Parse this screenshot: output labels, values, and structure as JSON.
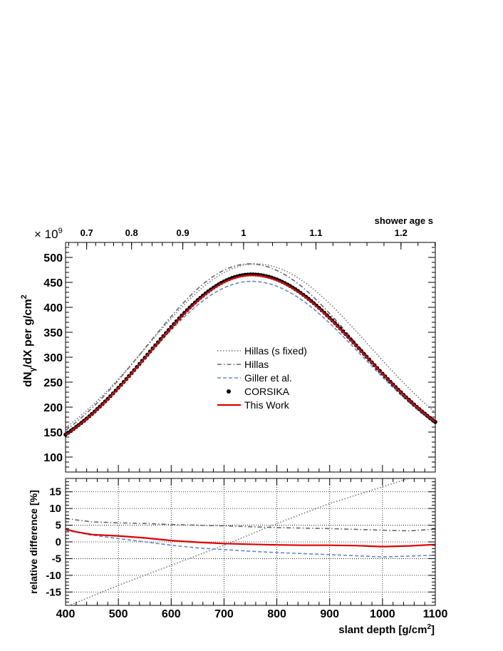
{
  "chart_data": [
    {
      "type": "line",
      "ylabel": "dN",
      "ylabel_sub": "γ",
      "ylabel_rest": "/dX per g/cm",
      "ylabel_sup": "2",
      "multiplier": "× 10",
      "multiplier_sup": "9",
      "xlim": [
        400,
        1100
      ],
      "ylim": [
        70,
        530
      ],
      "yticks": [
        "100",
        "150",
        "200",
        "250",
        "300",
        "350",
        "400",
        "450",
        "500"
      ],
      "top_axis": {
        "label": "shower age s",
        "ticks": [
          {
            "label": "0.7",
            "depth": 440
          },
          {
            "label": "0.8",
            "depth": 525
          },
          {
            "label": "0.9",
            "depth": 622
          },
          {
            "label": "1",
            "depth": 737
          },
          {
            "label": "1.1",
            "depth": 874
          },
          {
            "label": "1.2",
            "depth": 1035
          }
        ]
      },
      "legend": {
        "position": "center",
        "entries": [
          {
            "key": "hillas_s_fixed",
            "label": "Hillas (s fixed)"
          },
          {
            "key": "hillas",
            "label": "Hillas"
          },
          {
            "key": "giller",
            "label": "Giller et al."
          },
          {
            "key": "corsika",
            "label": "CORSIKA"
          },
          {
            "key": "this_work",
            "label": "This Work"
          }
        ]
      },
      "series": [
        {
          "key": "hillas_s_fixed",
          "color": "#777777",
          "style": "dotted",
          "x_max": 760,
          "y_max": 487,
          "left_width": 205,
          "right_width": 215,
          "low_cut": 70
        },
        {
          "key": "hillas",
          "color": "#666677",
          "style": "dashdot",
          "x_max": 748,
          "y_max": 487,
          "left_width": 194,
          "right_width": 206,
          "low_cut": 70
        },
        {
          "key": "giller",
          "color": "#6688cc",
          "style": "dashed",
          "x_max": 752,
          "y_max": 452,
          "left_width": 198,
          "right_width": 210,
          "low_cut": 70
        },
        {
          "key": "corsika",
          "color": "#000000",
          "style": "markers",
          "x_max": 752,
          "y_max": 466,
          "left_width": 193,
          "right_width": 210,
          "low_cut": 70,
          "marker_step": 5
        },
        {
          "key": "this_work",
          "color": "#dd0000",
          "style": "solid",
          "x_max": 752,
          "y_max": 464,
          "left_width": 193,
          "right_width": 210,
          "low_cut": 70
        }
      ]
    },
    {
      "type": "line",
      "ylabel": "relative difference [%]",
      "xlabel": "slant depth [g/cm",
      "xlabel_sup": "2",
      "xlabel_end": "]",
      "xlim": [
        400,
        1100
      ],
      "ylim": [
        -19,
        19
      ],
      "xticks": [
        "400",
        "500",
        "600",
        "700",
        "800",
        "900",
        "1000",
        "1100"
      ],
      "yticks": [
        "-15",
        "-10",
        "-5",
        "0",
        "5",
        "10",
        "15"
      ],
      "grid": true,
      "series": [
        {
          "key": "hillas_s_fixed",
          "color": "#777777",
          "style": "dotted",
          "x": [
            400,
            500,
            600,
            700,
            800,
            900,
            1000,
            1050,
            1100
          ],
          "y": [
            -19.5,
            -13,
            -7,
            -1,
            5.5,
            11.5,
            16.5,
            19,
            21
          ]
        },
        {
          "key": "hillas",
          "color": "#666677",
          "style": "dashdot",
          "x": [
            400,
            450,
            500,
            550,
            600,
            700,
            800,
            900,
            1000,
            1050,
            1100
          ],
          "y": [
            7,
            6,
            5.7,
            5.5,
            5.2,
            4.8,
            4.3,
            4,
            3.5,
            3.3,
            3.8
          ]
        },
        {
          "key": "giller",
          "color": "#6688cc",
          "style": "dashed",
          "x": [
            400,
            450,
            500,
            550,
            600,
            650,
            700,
            750,
            800,
            900,
            1000,
            1100
          ],
          "y": [
            3.5,
            2,
            1,
            0,
            -1,
            -1.8,
            -2.3,
            -2.8,
            -3.2,
            -3.8,
            -4.5,
            -4
          ]
        },
        {
          "key": "this_work",
          "color": "#dd0000",
          "style": "solid",
          "x": [
            400,
            420,
            450,
            500,
            550,
            600,
            650,
            700,
            750,
            800,
            850,
            900,
            950,
            1000,
            1050,
            1100
          ],
          "y": [
            3.8,
            3,
            2.2,
            1.8,
            1.2,
            0.4,
            -0.1,
            -0.5,
            -0.7,
            -0.9,
            -1,
            -1,
            -1.1,
            -1.4,
            -1.2,
            -0.8
          ]
        }
      ]
    }
  ]
}
